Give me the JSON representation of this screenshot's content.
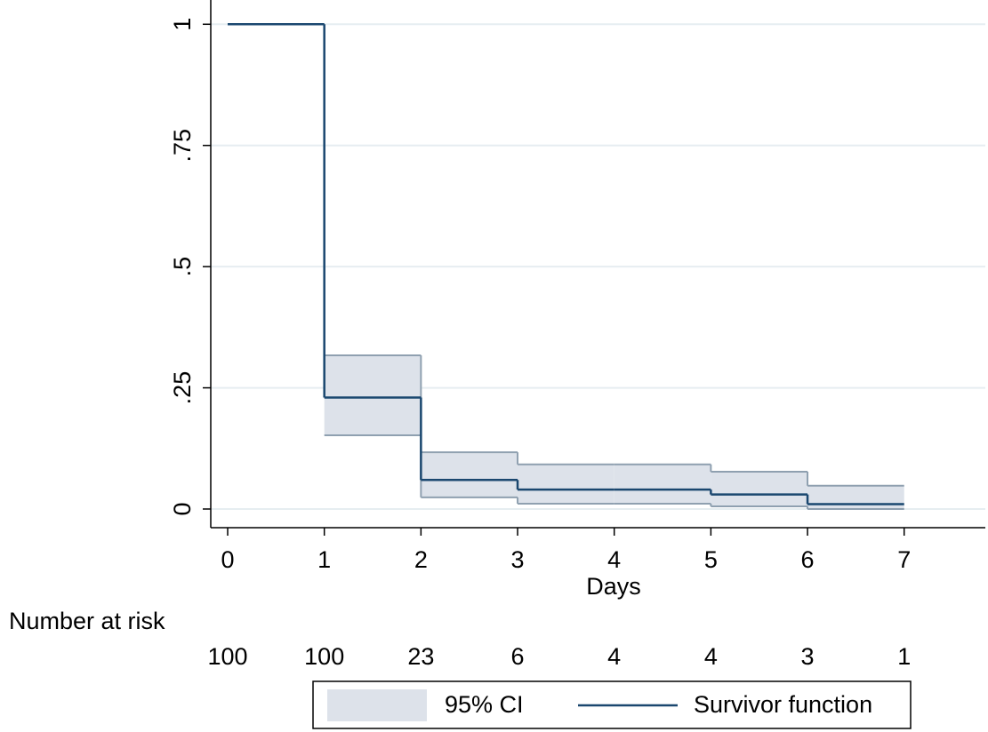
{
  "chart_data": {
    "type": "step",
    "x_label": "Days",
    "x": [
      0,
      1,
      2,
      3,
      4,
      5,
      6,
      7
    ],
    "series": [
      {
        "name": "95% CI",
        "color": "#dde2ea",
        "edge_color": "#8fa0b0",
        "lower": [
          null,
          0.152,
          0.024,
          0.011,
          0.011,
          0.0055,
          0.0,
          null
        ],
        "upper": [
          null,
          0.317,
          0.117,
          0.092,
          0.092,
          0.077,
          0.048,
          null
        ]
      },
      {
        "name": "Survivor function",
        "color": "#1a476f",
        "values": [
          1,
          0.23,
          0.06,
          0.04,
          0.04,
          0.03,
          0.01,
          0.01
        ]
      }
    ],
    "xlim": [
      -0.175,
      7.84
    ],
    "ylim": [
      -0.0385,
      1.05
    ],
    "xticks": [
      0,
      1,
      2,
      3,
      4,
      5,
      6,
      7
    ],
    "yticks": [
      0,
      {
        "value": 0.25,
        "label": ".25"
      },
      {
        "value": 0.5,
        "label": ".5"
      },
      {
        "value": 0.75,
        "label": ".75"
      },
      1
    ],
    "grid": true,
    "number_at_risk": {
      "label": "Number at risk",
      "values": [
        100,
        100,
        23,
        6,
        4,
        4,
        3,
        1
      ]
    }
  }
}
